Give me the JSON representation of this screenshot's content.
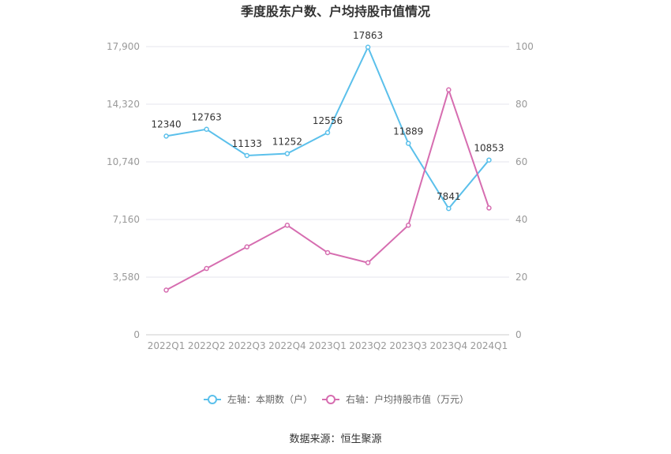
{
  "chart_data": {
    "type": "line",
    "title": "季度股东户数、户均持股市值情况",
    "categories": [
      "2022Q1",
      "2022Q2",
      "2022Q3",
      "2022Q4",
      "2023Q1",
      "2023Q2",
      "2023Q3",
      "2023Q4",
      "2024Q1"
    ],
    "left_axis": {
      "ylim": [
        0,
        17900
      ],
      "ticks": [
        "0",
        "3,580",
        "7,160",
        "10,740",
        "14,320",
        "17,900"
      ]
    },
    "right_axis": {
      "ylim": [
        0,
        100
      ],
      "ticks": [
        "0",
        "20",
        "40",
        "60",
        "80",
        "100"
      ]
    },
    "series": [
      {
        "name": "左轴：本期数（户）",
        "axis": "left",
        "color": "#5bc0eb",
        "values": [
          12340,
          12763,
          11133,
          11252,
          12556,
          17863,
          11889,
          7841,
          10853
        ],
        "labels": [
          "12340",
          "12763",
          "11133",
          "11252",
          "12556",
          "17863",
          "11889",
          "7841",
          "10853"
        ]
      },
      {
        "name": "右轴：户均持股市值（万元）",
        "axis": "right",
        "color": "#d66db0",
        "values": [
          15.5,
          23,
          30.5,
          38,
          28.5,
          25,
          38,
          85,
          44
        ]
      }
    ],
    "legend_position": "bottom",
    "grid": true
  },
  "source": "数据来源：恒生聚源"
}
